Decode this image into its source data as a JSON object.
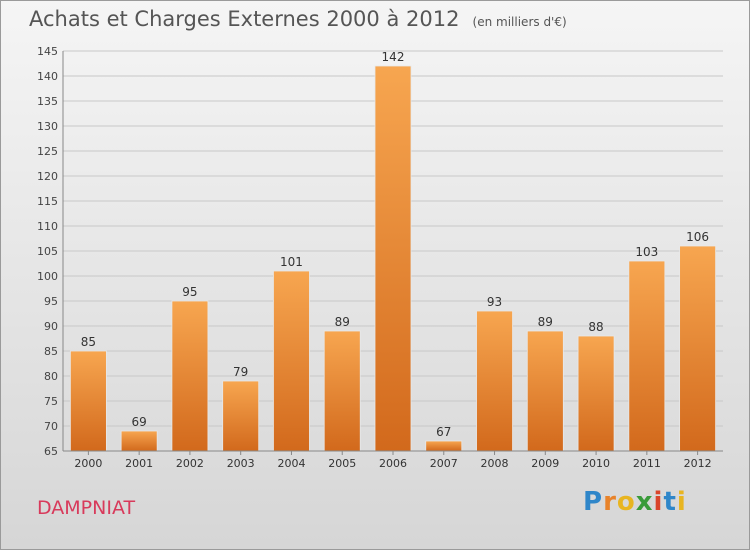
{
  "chart_data": {
    "type": "bar",
    "title": "Achats et Charges Externes 2000 à 2012",
    "subtitle": "(en milliers d'€)",
    "categories": [
      "2000",
      "2001",
      "2002",
      "2003",
      "2004",
      "2005",
      "2006",
      "2007",
      "2008",
      "2009",
      "2010",
      "2011",
      "2012"
    ],
    "values": [
      85,
      69,
      95,
      79,
      101,
      89,
      142,
      67,
      93,
      89,
      88,
      103,
      106
    ],
    "ylim": [
      65,
      145
    ],
    "yticks": [
      65,
      70,
      75,
      80,
      85,
      90,
      95,
      100,
      105,
      110,
      115,
      120,
      125,
      130,
      135,
      140,
      145
    ],
    "grid": true,
    "bar_color": "#f0913a"
  },
  "location": "DAMPNIAT",
  "logo": {
    "text": "Proxiti",
    "letters": [
      "P",
      "r",
      "o",
      "x",
      "i",
      "t",
      "i"
    ],
    "colors": [
      "#2f86c9",
      "#e8832a",
      "#e8b521",
      "#3a9b3a",
      "#d9442b",
      "#2f86c9",
      "#e8b521"
    ]
  }
}
